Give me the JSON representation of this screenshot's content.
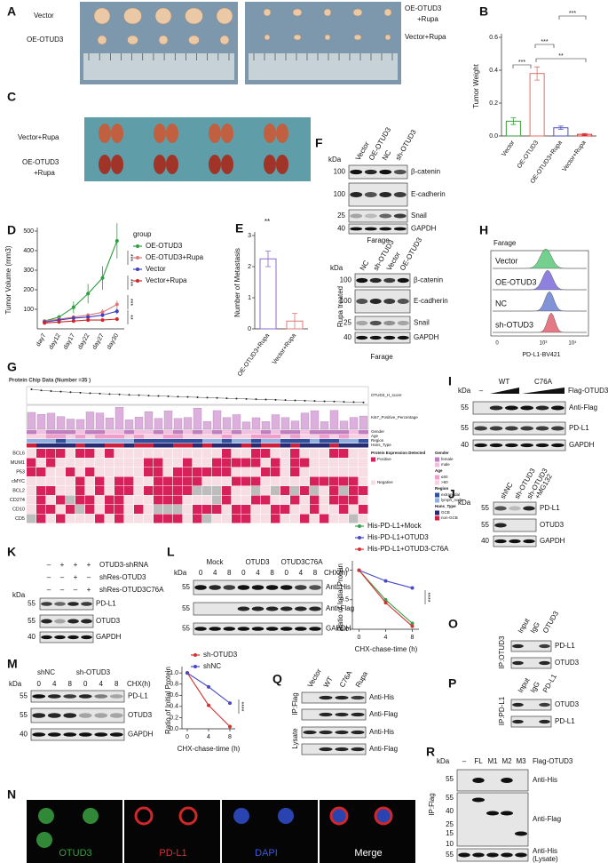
{
  "chart_data": [
    {
      "type": "bar",
      "ylabel": "Tumor Weight",
      "categories": [
        "Vector",
        "OE-OTUD3",
        "OE-OTUD3+Rupa",
        "Vector+Rupa"
      ],
      "values": [
        0.09,
        0.38,
        0.05,
        0.01
      ],
      "errors": [
        0.02,
        0.04,
        0.01,
        0.005
      ],
      "colors": [
        "#3a9e3a",
        "#e07060",
        "#5050c0",
        "#d03030"
      ],
      "ylim": [
        0,
        0.6
      ],
      "yticks": [
        {
          "value": 0,
          "label": "0.0"
        },
        {
          "value": 0.2,
          "label": "0.2"
        },
        {
          "value": 0.4,
          "label": "0.4"
        },
        {
          "value": 0.6,
          "label": "0.6"
        }
      ],
      "annotations": [
        "***",
        "***",
        "***",
        "**"
      ]
    },
    {
      "type": "line",
      "ylabel": "Tumor Volume (mm3)",
      "categories": [
        "day7",
        "day12",
        "day17",
        "day22",
        "day27",
        "day30"
      ],
      "legend_title": "group",
      "series": [
        {
          "name": "OE-OTUD3",
          "color": "#2e9e3e",
          "values": [
            40,
            60,
            110,
            180,
            260,
            450
          ],
          "errors": [
            5,
            10,
            30,
            50,
            60,
            90
          ]
        },
        {
          "name": "OE-OTUD3+Rupa",
          "color": "#e07878",
          "values": [
            40,
            50,
            60,
            70,
            85,
            125
          ],
          "errors": [
            5,
            5,
            10,
            10,
            15,
            20
          ]
        },
        {
          "name": "Vector",
          "color": "#4040c0",
          "values": [
            35,
            45,
            55,
            60,
            70,
            90
          ],
          "errors": [
            5,
            5,
            5,
            10,
            10,
            15
          ]
        },
        {
          "name": "Vector+Rupa",
          "color": "#d02828",
          "values": [
            30,
            35,
            40,
            45,
            45,
            50
          ],
          "errors": [
            5,
            5,
            5,
            5,
            5,
            10
          ]
        }
      ],
      "ylim": [
        0,
        500
      ],
      "yticks": [
        100,
        200,
        300,
        400,
        500
      ],
      "annotations": [
        "***",
        "***",
        "***",
        "**"
      ]
    },
    {
      "type": "bar",
      "ylabel": "Number of Metastasis",
      "categories": [
        "OE-OTUD3+Rupa",
        "Vector+Rupa"
      ],
      "values": [
        2.25,
        0.25
      ],
      "errors": [
        0.25,
        0.25
      ],
      "colors": [
        "#8a6ad0",
        "#e07878"
      ],
      "ylim": [
        0,
        3
      ],
      "yticks": [
        0,
        1,
        2,
        3
      ],
      "annotations": [
        "**"
      ]
    },
    {
      "type": "line",
      "ylabel": "Ratio of Initial Protein",
      "xlabel": "CHX-chase-time (h)",
      "x": [
        0,
        4,
        8
      ],
      "xlim": [
        -1,
        9
      ],
      "xticks": [
        0,
        4,
        8
      ],
      "series": [
        {
          "name": "His-PD-L1+Mock",
          "color": "#3aa04a",
          "values": [
            1,
            0.5,
            0.1
          ]
        },
        {
          "name": "His-PD-L1+OTUD3",
          "color": "#4848c8",
          "values": [
            1,
            0.82,
            0.7
          ]
        },
        {
          "name": "His-PD-L1+OTUD3-C76A",
          "color": "#d83030",
          "values": [
            1,
            0.45,
            0.05
          ]
        }
      ],
      "ylim": [
        0,
        1.1
      ],
      "yticks": [
        {
          "value": 0,
          "label": "0.0"
        },
        {
          "value": 0.5,
          "label": "0.5"
        },
        {
          "value": 1,
          "label": "1.0"
        }
      ],
      "annotations": [
        "****"
      ]
    },
    {
      "type": "line",
      "ylabel": "Ratio of Initial Protein",
      "xlabel": "CHX-chase-time (h)",
      "x": [
        0,
        4,
        8
      ],
      "xlim": [
        -1,
        9
      ],
      "xticks": [
        0,
        4,
        8
      ],
      "series": [
        {
          "name": "sh-OTUD3",
          "color": "#d83030",
          "values": [
            1,
            0.42,
            0.04
          ]
        },
        {
          "name": "shNC",
          "color": "#4848c8",
          "values": [
            1,
            0.75,
            0.46
          ]
        }
      ],
      "ylim": [
        0,
        1.05
      ],
      "yticks": [
        {
          "value": 0,
          "label": "0.0"
        },
        {
          "value": 0.2,
          "label": "0.2"
        },
        {
          "value": 0.4,
          "label": "0.4"
        },
        {
          "value": 0.6,
          "label": "0.6"
        },
        {
          "value": 0.8,
          "label": "0.8"
        },
        {
          "value": 1,
          "label": "1.0"
        }
      ],
      "annotations": [
        "****"
      ]
    }
  ],
  "figure": {
    "panel_labels": [
      "A",
      "B",
      "C",
      "D",
      "E",
      "F",
      "G",
      "H",
      "I",
      "J",
      "K",
      "L",
      "M",
      "N",
      "O",
      "P",
      "Q",
      "R"
    ],
    "A": {
      "left": [
        "Vector",
        "OE-OTUD3"
      ],
      "right": [
        "OE-OTUD3",
        "+Rupa",
        "Vector+Rupa"
      ]
    },
    "C": {
      "labels": [
        "Vector+Rupa",
        "OE-OTUD3",
        "+Rupa"
      ]
    },
    "F": {
      "kda": "kDa",
      "top": {
        "lanes": [
          "Vector",
          "OE-OTUD3",
          "NC",
          "sh-OTUD3"
        ],
        "markers": [
          100,
          100,
          25,
          40
        ],
        "bands": [
          "β-catenin",
          "E-cadherin",
          "Snail",
          "GAPDH"
        ],
        "cell_line": "Farage"
      },
      "bottom": {
        "lanes": [
          "NC",
          "sh-OTUD3",
          "Vector",
          "OE-OTUD3"
        ],
        "markers": [
          100,
          100,
          25,
          40
        ],
        "bands": [
          "β-catenin",
          "E-cadherin",
          "Snail",
          "GAPDH"
        ],
        "treatment": "Rupa treated",
        "cell_line": "Farage"
      }
    },
    "G": {
      "title": "Protein Chip Data (Number =35 )",
      "tracks": [
        "OTUD3_H_score",
        "Ki67_Positive_Percentage",
        "Gender",
        "Age",
        "Region",
        "Hans_Type"
      ],
      "genes": [
        "BCL6",
        "MUM1",
        "P53",
        "cMYC",
        "BCL2",
        "CD274",
        "CD10",
        "CD5"
      ],
      "legend": {
        "expression": {
          "title": "Protein Expression Detected",
          "items": [
            "Positive",
            "Negative"
          ]
        },
        "gender": {
          "title": "Gender",
          "items": [
            "female",
            "male"
          ]
        },
        "age": {
          "title": "Age",
          "items": [
            "≤60",
            ">60"
          ]
        },
        "region": {
          "title": "Region",
          "items": [
            "extranodal",
            "lymph_node"
          ]
        },
        "hans_type": {
          "title": "Hans_Type",
          "items": [
            "GCB",
            "non-GCB"
          ]
        }
      }
    },
    "H": {
      "cell_line": "Farage",
      "groups": [
        "Vector",
        "OE-OTUD3",
        "NC",
        "sh-OTUD3"
      ],
      "colors": [
        "#5cc87a",
        "#7a6ad8",
        "#6a80d0",
        "#e06070"
      ],
      "xlabel": "PD-L1-BV421",
      "xticks": [
        "0",
        "10³",
        "10⁴"
      ]
    },
    "I": {
      "kda": "kDa",
      "lanes": [
        "–",
        "WT",
        "C76A"
      ],
      "construct": "Flag-OTUD3",
      "markers": [
        55,
        55,
        40
      ],
      "bands": [
        "Anti-Flag",
        "PD-L1",
        "GAPDH"
      ]
    },
    "J": {
      "kda": "kDa",
      "lanes": [
        "shNC",
        "sh-OTUD3",
        "sh-OTUD3"
      ],
      "treatment": "+MG132",
      "markers": [
        55,
        55,
        40
      ],
      "bands": [
        "PD-L1",
        "OTUD3",
        "GAPDH"
      ]
    },
    "K": {
      "kda": "kDa",
      "conditions": [
        {
          "name": "OTUD3-shRNA",
          "signs": [
            "–",
            "+",
            "+",
            "+"
          ]
        },
        {
          "name": "shRes-OTUD3",
          "signs": [
            "–",
            "–",
            "+",
            "–"
          ]
        },
        {
          "name": "shRes-OTUD3C76A",
          "signs": [
            "–",
            "–",
            "–",
            "+"
          ]
        }
      ],
      "markers": [
        55,
        55,
        40
      ],
      "bands": [
        "PD-L1",
        "OTUD3",
        "GAPDH"
      ]
    },
    "L": {
      "kda": "kDa",
      "groups": [
        "Mock",
        "OTUD3",
        "OTUD3C76A"
      ],
      "times": [
        0,
        4,
        8,
        0,
        4,
        8,
        0,
        4,
        8
      ],
      "time_label": "CHX(h)",
      "markers": [
        55,
        55,
        55
      ],
      "bands": [
        "Anti-His",
        "Anti-Flag",
        "GAPDH"
      ]
    },
    "M": {
      "kda": "kDa",
      "groups": [
        "shNC",
        "sh-OTUD3"
      ],
      "times": [
        0,
        4,
        8,
        0,
        4,
        8
      ],
      "time_label": "CHX(h)",
      "markers": [
        55,
        55,
        40
      ],
      "bands": [
        "PD-L1",
        "OTUD3",
        "GAPDH"
      ]
    },
    "N": {
      "channels": [
        "OTUD3",
        "PD-L1",
        "DAPI",
        "Merge"
      ]
    },
    "O": {
      "lanes": [
        "Input",
        "IgG",
        "OTUD3"
      ],
      "ip": "IP:OTUD3",
      "bands": [
        "PD-L1",
        "OTUD3"
      ]
    },
    "P": {
      "lanes": [
        "Input",
        "IgG",
        "PD-L1"
      ],
      "ip": "IP:PD-L1",
      "bands": [
        "OTUD3",
        "PD-L1"
      ]
    },
    "Q": {
      "lanes": [
        "Vector",
        "WT",
        "C76A",
        "Rupa"
      ],
      "ip": "IP:Flag",
      "lysate": "Lysate",
      "bands": [
        "Anti-His",
        "Anti-Flag",
        "Anti-His",
        "Anti-Flag"
      ]
    },
    "R": {
      "kda": "kDa",
      "lanes": [
        "–",
        "FL",
        "M1",
        "M2",
        "M3"
      ],
      "construct": "Flag-OTUD3",
      "ip": "IP:Flag",
      "markers": [
        55,
        55,
        40,
        25,
        15,
        10,
        55
      ],
      "bands": [
        "Anti-His",
        "Anti-Flag",
        "Anti-His",
        "(Lysate)"
      ]
    }
  }
}
